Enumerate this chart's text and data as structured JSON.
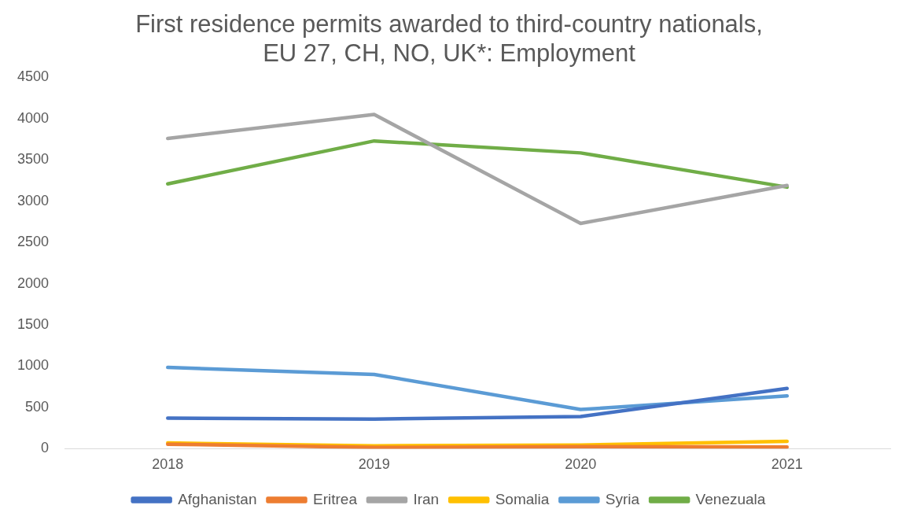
{
  "chart_data": {
    "type": "line",
    "title": "First residence permits awarded to third-country nationals,\nEU 27, CH, NO, UK*: Employment",
    "categories": [
      "2018",
      "2019",
      "2020",
      "2021"
    ],
    "series": [
      {
        "name": "Afghanistan",
        "color": "#4472c4",
        "values": [
          370,
          360,
          390,
          730
        ]
      },
      {
        "name": "Eritrea",
        "color": "#ed7d31",
        "values": [
          55,
          15,
          25,
          20
        ]
      },
      {
        "name": "Iran",
        "color": "#a5a5a5",
        "values": [
          3760,
          4050,
          2730,
          3190
        ]
      },
      {
        "name": "Somalia",
        "color": "#ffc000",
        "values": [
          70,
          35,
          45,
          90
        ]
      },
      {
        "name": "Syria",
        "color": "#5b9bd5",
        "values": [
          985,
          900,
          475,
          640
        ]
      },
      {
        "name": "Venezuala",
        "color": "#70ad47",
        "values": [
          3210,
          3730,
          3585,
          3170
        ]
      }
    ],
    "ylim": [
      0,
      4500
    ],
    "yticks": [
      0,
      500,
      1000,
      1500,
      2000,
      2500,
      3000,
      3500,
      4000,
      4500
    ],
    "grid": false,
    "legend": "bottom",
    "marker": "none",
    "line_style": "solid"
  }
}
